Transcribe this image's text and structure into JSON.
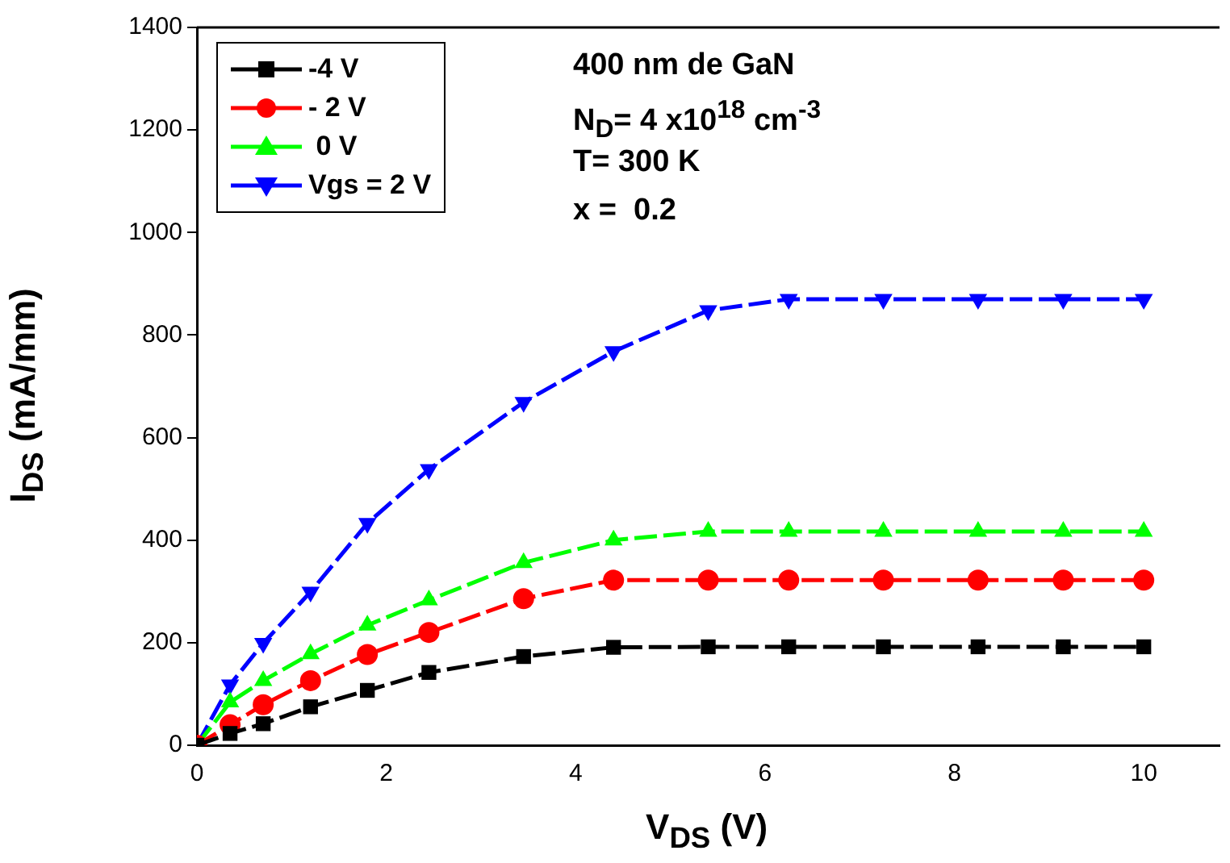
{
  "chart_data": {
    "type": "line",
    "xlabel": "V$_{DS}$ (V)",
    "ylabel": "I$_{DS}$ (mA/mm)",
    "x": [
      0,
      0.35,
      0.7,
      1.2,
      1.8,
      2.45,
      3.45,
      4.4,
      5.4,
      6.25,
      7.25,
      8.25,
      9.15,
      10
    ],
    "xlim": [
      0,
      10.8
    ],
    "xticks": [
      0,
      2,
      4,
      6,
      8,
      10
    ],
    "ylim": [
      0,
      1400
    ],
    "yticks": [
      0,
      200,
      400,
      600,
      800,
      1000,
      1200,
      1400
    ],
    "grid": false,
    "legend": "top left",
    "line_style": "dashed",
    "series": [
      {
        "name": "-4 V",
        "color": "#000000",
        "marker": "square",
        "values": [
          0,
          23,
          42,
          75,
          107,
          142,
          173,
          191,
          192,
          192,
          192,
          192,
          192,
          192
        ]
      },
      {
        "name": "- 2 V",
        "color": "#ff0000",
        "marker": "circle",
        "values": [
          0,
          40,
          79,
          126,
          177,
          220,
          286,
          322,
          322,
          322,
          322,
          322,
          322,
          322
        ]
      },
      {
        "name": " 0 V",
        "color": "#00ff00",
        "marker": "triangle",
        "values": [
          0,
          84,
          126,
          178,
          234,
          283,
          356,
          400,
          417,
          417,
          417,
          417,
          417,
          417
        ]
      },
      {
        "name": "Vgs = 2 V",
        "color": "#0000ff",
        "marker": "triangle-down",
        "values": [
          0,
          118,
          199,
          299,
          433,
          538,
          669,
          768,
          848,
          870,
          870,
          870,
          870,
          870
        ]
      }
    ],
    "annotations": [
      "400 nm de GaN",
      "N$_{D}$= 4 x10$^{18}$ cm$^{-3}$",
      "T= 300 K",
      "x =  0.2"
    ]
  }
}
